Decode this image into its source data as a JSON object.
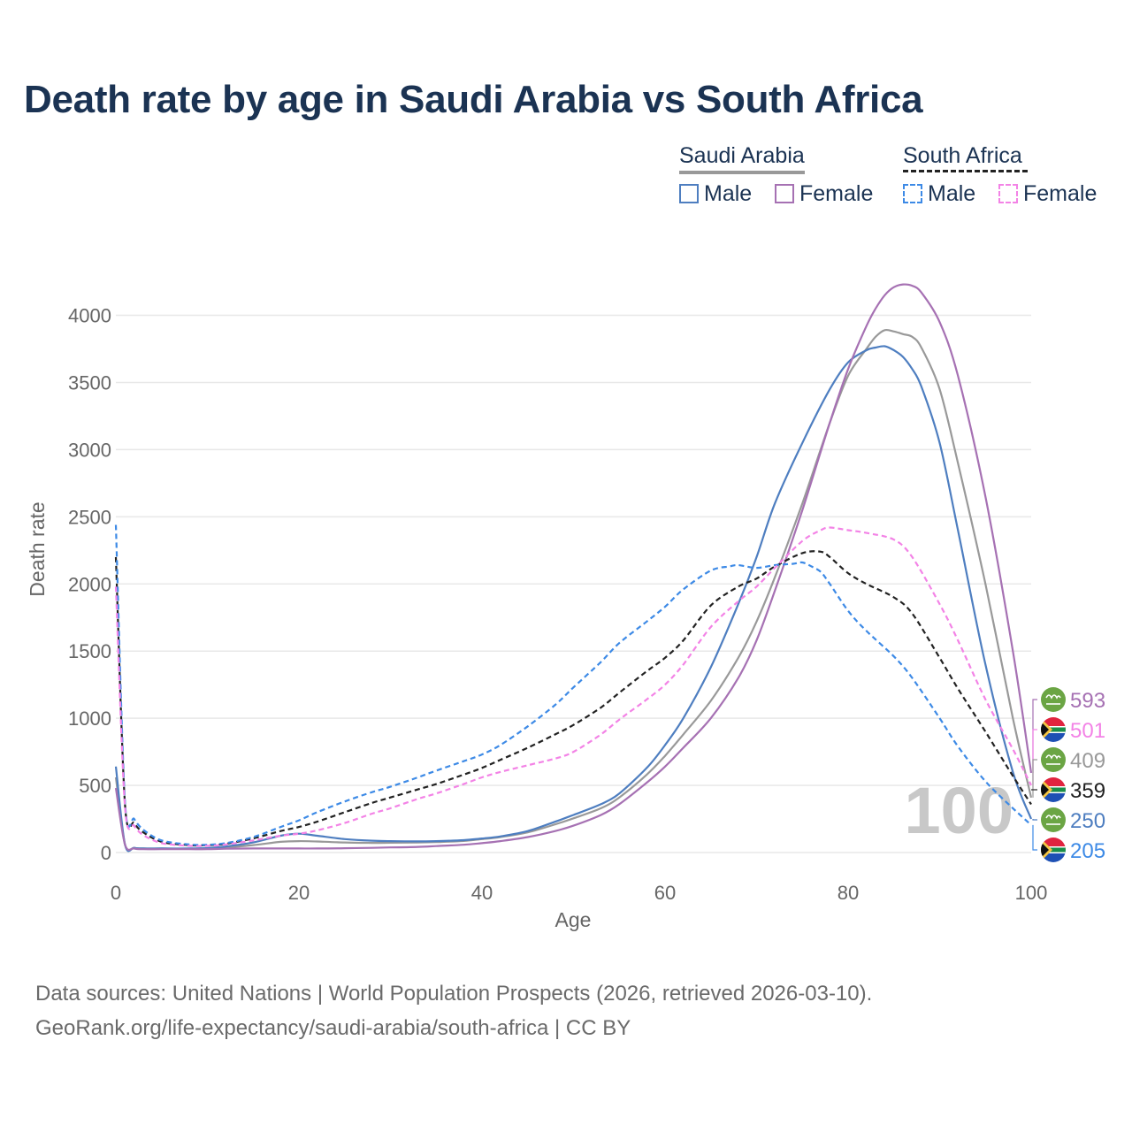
{
  "title": "Death rate by age in Saudi Arabia vs South Africa",
  "legend": {
    "groups": [
      {
        "name": "Saudi Arabia",
        "items": [
          {
            "label": "Male",
            "color": "#4e7ec0",
            "dash": false
          },
          {
            "label": "Female",
            "color": "#a671b3",
            "dash": false
          }
        ],
        "group_color": "#999999",
        "group_dash": false
      },
      {
        "name": "South Africa",
        "items": [
          {
            "label": "Male",
            "color": "#3d8ae6",
            "dash": true
          },
          {
            "label": "Female",
            "color": "#f383e6",
            "dash": true
          }
        ],
        "group_color": "#222222",
        "group_dash": true
      }
    ]
  },
  "age_marker": "100",
  "end_labels": [
    {
      "value": "593",
      "color": "#a671b3",
      "country": "Saudi Arabia"
    },
    {
      "value": "501",
      "color": "#f383e6",
      "country": "South Africa"
    },
    {
      "value": "409",
      "color": "#999999",
      "country": "Saudi Arabia"
    },
    {
      "value": "359",
      "color": "#222222",
      "country": "South Africa"
    },
    {
      "value": "250",
      "color": "#4e7ec0",
      "country": "Saudi Arabia"
    },
    {
      "value": "205",
      "color": "#3d8ae6",
      "country": "South Africa"
    }
  ],
  "footer": {
    "line1": "Data sources: United Nations | World Population Prospects (2026, retrieved 2026-03-10).",
    "line2": "GeoRank.org/life-expectancy/saudi-arabia/south-africa | CC BY"
  },
  "chart_data": {
    "type": "line",
    "xlabel": "Age",
    "ylabel": "Death rate",
    "xlim": [
      0,
      100
    ],
    "ylim": [
      0,
      4300
    ],
    "x_ticks": [
      0,
      20,
      40,
      60,
      80,
      100
    ],
    "y_ticks": [
      0,
      500,
      1000,
      1500,
      2000,
      2500,
      3000,
      3500,
      4000
    ],
    "grid": true,
    "series": [
      {
        "name": "Saudi Arabia Total",
        "color": "#999999",
        "dash": false,
        "width": 2.2,
        "x": [
          0,
          1,
          2,
          3,
          5,
          8,
          10,
          12,
          15,
          18,
          20,
          22,
          25,
          28,
          30,
          33,
          35,
          38,
          40,
          42,
          45,
          48,
          50,
          53,
          55,
          58,
          60,
          62,
          65,
          68,
          70,
          72,
          75,
          78,
          80,
          82,
          83,
          84,
          85,
          86,
          87,
          88,
          90,
          92,
          95,
          98,
          100
        ],
        "y": [
          560,
          60,
          35,
          30,
          30,
          28,
          30,
          38,
          55,
          80,
          85,
          82,
          75,
          72,
          73,
          75,
          78,
          86,
          100,
          115,
          150,
          210,
          255,
          330,
          410,
          580,
          720,
          880,
          1130,
          1450,
          1720,
          2050,
          2600,
          3200,
          3550,
          3750,
          3840,
          3890,
          3880,
          3860,
          3840,
          3760,
          3450,
          2900,
          2000,
          1000,
          409
        ]
      },
      {
        "name": "Saudi Arabia Male",
        "color": "#4e7ec0",
        "dash": false,
        "width": 2.2,
        "x": [
          0,
          1,
          2,
          3,
          5,
          8,
          10,
          12,
          15,
          18,
          20,
          22,
          25,
          28,
          30,
          33,
          35,
          38,
          40,
          42,
          45,
          48,
          50,
          53,
          55,
          58,
          60,
          62,
          65,
          68,
          70,
          72,
          75,
          78,
          80,
          82,
          83,
          84,
          85,
          86,
          87,
          88,
          90,
          92,
          95,
          98,
          100
        ],
        "y": [
          640,
          60,
          35,
          30,
          30,
          30,
          33,
          45,
          75,
          125,
          140,
          125,
          100,
          88,
          85,
          83,
          85,
          92,
          105,
          120,
          160,
          230,
          280,
          360,
          440,
          630,
          800,
          1000,
          1380,
          1850,
          2200,
          2600,
          3050,
          3450,
          3650,
          3740,
          3760,
          3770,
          3740,
          3690,
          3600,
          3470,
          3050,
          2400,
          1400,
          600,
          250
        ]
      },
      {
        "name": "Saudi Arabia Female",
        "color": "#a671b3",
        "dash": false,
        "width": 2.2,
        "x": [
          0,
          1,
          2,
          3,
          5,
          8,
          10,
          12,
          15,
          18,
          20,
          22,
          25,
          28,
          30,
          33,
          35,
          38,
          40,
          42,
          45,
          48,
          50,
          53,
          55,
          58,
          60,
          62,
          65,
          68,
          70,
          72,
          75,
          78,
          80,
          82,
          83,
          84,
          85,
          86,
          87,
          88,
          90,
          92,
          95,
          98,
          100
        ],
        "y": [
          480,
          60,
          30,
          25,
          25,
          25,
          25,
          28,
          30,
          30,
          30,
          30,
          32,
          35,
          38,
          42,
          48,
          58,
          70,
          85,
          115,
          160,
          200,
          280,
          360,
          520,
          640,
          780,
          1000,
          1300,
          1580,
          1950,
          2550,
          3200,
          3600,
          3920,
          4050,
          4150,
          4210,
          4230,
          4220,
          4170,
          3950,
          3550,
          2650,
          1500,
          593
        ]
      },
      {
        "name": "South Africa Total",
        "color": "#222222",
        "dash": true,
        "width": 2.2,
        "x": [
          0,
          1,
          2,
          3,
          5,
          8,
          10,
          12,
          15,
          18,
          20,
          22,
          25,
          28,
          30,
          33,
          35,
          38,
          40,
          42,
          45,
          48,
          50,
          53,
          55,
          58,
          60,
          62,
          65,
          68,
          70,
          72,
          75,
          77,
          78,
          80,
          82,
          85,
          87,
          90,
          92,
          95,
          98,
          100
        ],
        "y": [
          2200,
          360,
          220,
          150,
          80,
          55,
          55,
          65,
          105,
          160,
          190,
          230,
          300,
          370,
          410,
          470,
          510,
          580,
          630,
          690,
          780,
          880,
          950,
          1080,
          1190,
          1350,
          1450,
          1580,
          1840,
          1980,
          2040,
          2130,
          2230,
          2240,
          2200,
          2080,
          2000,
          1900,
          1780,
          1450,
          1220,
          900,
          570,
          359
        ]
      },
      {
        "name": "South Africa Male",
        "color": "#3d8ae6",
        "dash": true,
        "width": 2.2,
        "x": [
          0,
          1,
          2,
          3,
          5,
          8,
          10,
          12,
          15,
          18,
          20,
          22,
          25,
          28,
          30,
          33,
          35,
          38,
          40,
          42,
          45,
          48,
          50,
          53,
          55,
          58,
          60,
          62,
          65,
          67,
          68,
          70,
          72,
          74,
          75,
          76,
          77,
          78,
          80,
          82,
          85,
          87,
          90,
          92,
          95,
          98,
          100
        ],
        "y": [
          2440,
          380,
          250,
          170,
          90,
          60,
          58,
          70,
          115,
          190,
          240,
          300,
          380,
          450,
          490,
          560,
          610,
          680,
          730,
          800,
          940,
          1100,
          1230,
          1420,
          1560,
          1720,
          1830,
          1960,
          2100,
          2130,
          2140,
          2120,
          2140,
          2150,
          2160,
          2130,
          2090,
          2000,
          1800,
          1650,
          1460,
          1300,
          1000,
          790,
          530,
          330,
          205
        ]
      },
      {
        "name": "South Africa Female",
        "color": "#f383e6",
        "dash": true,
        "width": 2.2,
        "x": [
          0,
          1,
          2,
          3,
          5,
          8,
          10,
          12,
          15,
          18,
          20,
          22,
          25,
          28,
          30,
          33,
          35,
          38,
          40,
          42,
          45,
          48,
          50,
          53,
          55,
          58,
          60,
          62,
          65,
          68,
          70,
          72,
          75,
          77,
          78,
          80,
          82,
          85,
          87,
          90,
          92,
          95,
          98,
          100
        ],
        "y": [
          1980,
          340,
          200,
          130,
          70,
          50,
          50,
          60,
          90,
          125,
          140,
          165,
          220,
          290,
          330,
          400,
          440,
          510,
          560,
          600,
          650,
          700,
          750,
          880,
          990,
          1140,
          1250,
          1400,
          1680,
          1870,
          1980,
          2120,
          2320,
          2400,
          2420,
          2400,
          2380,
          2330,
          2200,
          1850,
          1580,
          1140,
          770,
          501
        ]
      }
    ]
  }
}
